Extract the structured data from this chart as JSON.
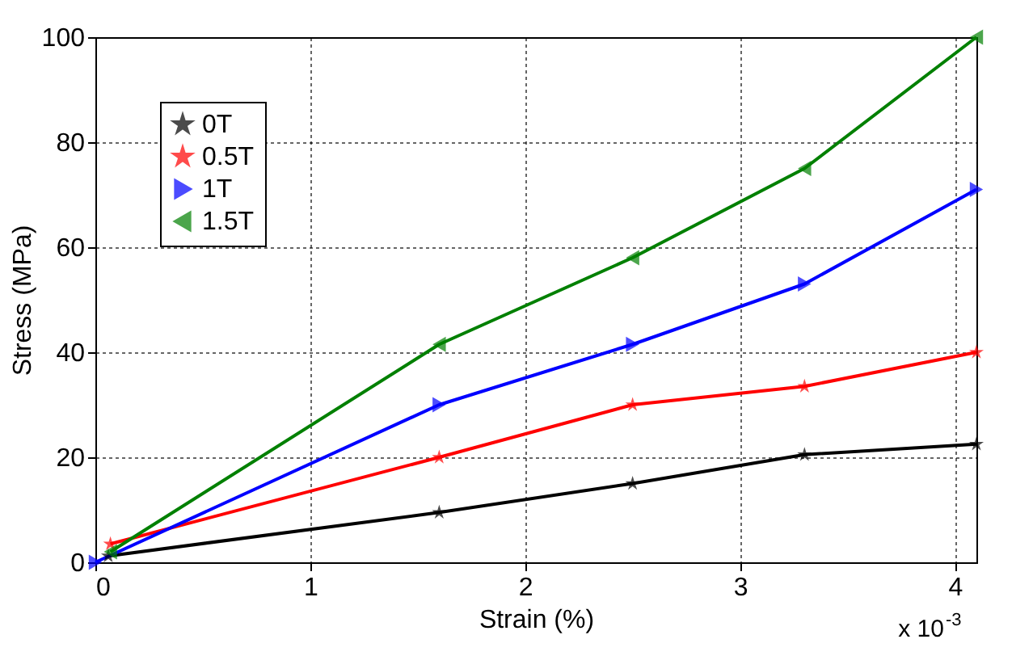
{
  "chart_data": {
    "type": "line",
    "xlabel": "Strain (%)",
    "ylabel": "Stress (MPa)",
    "xlim": [
      0,
      4.1
    ],
    "xticks": [
      0,
      1,
      2,
      3,
      4
    ],
    "ylim": [
      0,
      100
    ],
    "yticks": [
      0,
      20,
      40,
      60,
      80,
      100
    ],
    "grid": true,
    "legend": "top left",
    "line_style": "solid",
    "annotations": [
      "x 10$^{-3}$"
    ],
    "series": [
      {
        "name": "0T",
        "color": "#000000",
        "marker": "star",
        "x": [
          0.06,
          1.6,
          2.5,
          3.3,
          4.1
        ],
        "values": [
          1.2,
          9.5,
          15,
          20.5,
          22.5
        ]
      },
      {
        "name": "0.5T",
        "color": "#ff0000",
        "marker": "star",
        "x": [
          0.07,
          1.6,
          2.5,
          3.3,
          4.1
        ],
        "values": [
          3.5,
          20,
          30,
          33.5,
          40
        ]
      },
      {
        "name": "1T",
        "color": "#0000ff",
        "marker": "triangle-right",
        "x": [
          0,
          1.6,
          2.5,
          3.3,
          4.1
        ],
        "values": [
          0,
          30,
          41.5,
          53,
          71
        ]
      },
      {
        "name": "1.5T",
        "color": "#008000",
        "marker": "triangle-left",
        "x": [
          0.07,
          1.6,
          2.5,
          3.3,
          4.1
        ],
        "values": [
          2,
          41.5,
          58,
          75,
          100
        ]
      }
    ]
  }
}
